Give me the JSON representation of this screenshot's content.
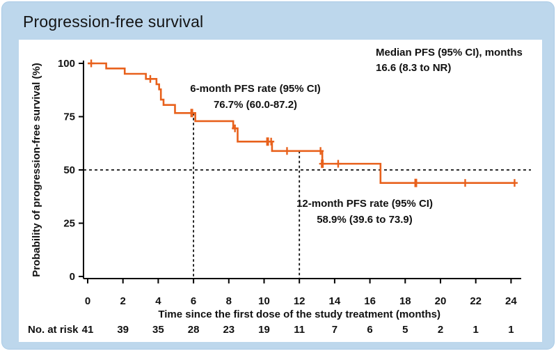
{
  "header": {
    "title": "Progression-free survival"
  },
  "chart_data": {
    "type": "line",
    "subtype": "kaplan-meier-step-curve",
    "title": "Progression-free survival",
    "xlabel": "Time since the first dose of the study treatment (months)",
    "ylabel": "Probability of progression-free survival (%)",
    "xlim": [
      0,
      25
    ],
    "ylim": [
      0,
      100
    ],
    "x_ticks": [
      0,
      2,
      4,
      6,
      8,
      10,
      12,
      14,
      16,
      18,
      20,
      22,
      24
    ],
    "y_ticks": [
      0,
      25,
      50,
      75,
      100
    ],
    "grid": "off",
    "curve_color": "#E8611C",
    "text_color": "#111111",
    "steps": [
      {
        "t": 0,
        "s": 100
      },
      {
        "t": 1.05,
        "s": 97.6
      },
      {
        "t": 2.1,
        "s": 95.1
      },
      {
        "t": 3.3,
        "s": 92.7
      },
      {
        "t": 3.9,
        "s": 90.2
      },
      {
        "t": 4.05,
        "s": 87.8
      },
      {
        "t": 4.15,
        "s": 83.0
      },
      {
        "t": 4.3,
        "s": 80.5
      },
      {
        "t": 4.95,
        "s": 76.7
      },
      {
        "t": 6.1,
        "s": 72.9
      },
      {
        "t": 8.25,
        "s": 69.5
      },
      {
        "t": 8.5,
        "s": 63.3
      },
      {
        "t": 10.45,
        "s": 58.9
      },
      {
        "t": 13.3,
        "s": 52.9
      },
      {
        "t": 16.6,
        "s": 43.9
      }
    ],
    "end_t": 24.2,
    "censors": [
      {
        "t": 0.2,
        "s": 100
      },
      {
        "t": 3.55,
        "s": 92.7
      },
      {
        "t": 5.9,
        "s": 76.7,
        "bold": true
      },
      {
        "t": 8.35,
        "s": 69.5
      },
      {
        "t": 10.2,
        "s": 63.3,
        "bold": true
      },
      {
        "t": 10.4,
        "s": 63.3
      },
      {
        "t": 11.3,
        "s": 58.9
      },
      {
        "t": 13.2,
        "s": 58.9
      },
      {
        "t": 13.3,
        "s": 52.9,
        "bold": true
      },
      {
        "t": 14.2,
        "s": 52.9
      },
      {
        "t": 18.6,
        "s": 43.9,
        "bold": true
      },
      {
        "t": 21.4,
        "s": 43.9
      },
      {
        "t": 24.2,
        "s": 43.9
      }
    ],
    "reference_lines": {
      "horizontal_median": {
        "y": 50,
        "style": "dashed"
      },
      "vertical_6month": {
        "x": 6,
        "top": 76.7,
        "style": "dashed"
      },
      "vertical_12month": {
        "x": 12,
        "top": 58.9,
        "style": "dashed"
      }
    },
    "annotations": [
      {
        "id": "median",
        "lines": [
          "Median PFS (95% CI), months",
          "16.6 (8.3 to NR)"
        ]
      },
      {
        "id": "pfs6",
        "lines": [
          "6-month PFS rate (95% CI)",
          "76.7% (60.0-87.2)"
        ]
      },
      {
        "id": "pfs12",
        "lines": [
          "12-month PFS rate (95% CI)",
          "58.9% (39.6 to 73.9)"
        ]
      }
    ],
    "risk_table": {
      "label": "No. at risk",
      "times": [
        0,
        2,
        4,
        6,
        8,
        10,
        12,
        14,
        16,
        18,
        20,
        22,
        24
      ],
      "values": [
        41,
        39,
        35,
        28,
        23,
        19,
        11,
        7,
        6,
        5,
        2,
        1,
        1
      ]
    }
  }
}
